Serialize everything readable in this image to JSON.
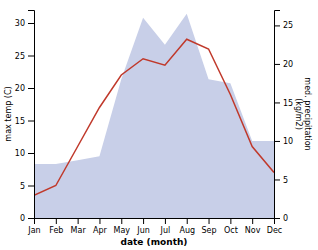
{
  "chart_data": {
    "type": "line",
    "categories": [
      "Jan",
      "Feb",
      "Mar",
      "Apr",
      "May",
      "Jun",
      "Jul",
      "Aug",
      "Sep",
      "Oct",
      "Nov",
      "Dec"
    ],
    "xlabel": "date (month)",
    "ylabel": "max temp (C)",
    "y2label": "med. precipitation\n(kg/m2)",
    "series": [
      {
        "type": "area",
        "axis": "y2",
        "color": "#c8cfe8",
        "values": [
          7.0,
          7.0,
          7.5,
          8.0,
          18.0,
          26.0,
          22.5,
          26.5,
          18.0,
          17.5,
          10.0,
          10.0
        ]
      },
      {
        "type": "line",
        "axis": "y",
        "color": "#c0392b",
        "values": [
          3.5,
          5.0,
          11.0,
          17.0,
          22.0,
          24.5,
          23.5,
          27.5,
          26.0,
          19.0,
          11.0,
          7.0
        ]
      }
    ],
    "ylim": [
      0,
      32
    ],
    "yticks": [
      0,
      5,
      10,
      15,
      20,
      25,
      30
    ],
    "y2lim": [
      0,
      27
    ],
    "y2ticks": [
      0,
      5,
      10,
      15,
      20,
      25
    ],
    "grid": false
  }
}
